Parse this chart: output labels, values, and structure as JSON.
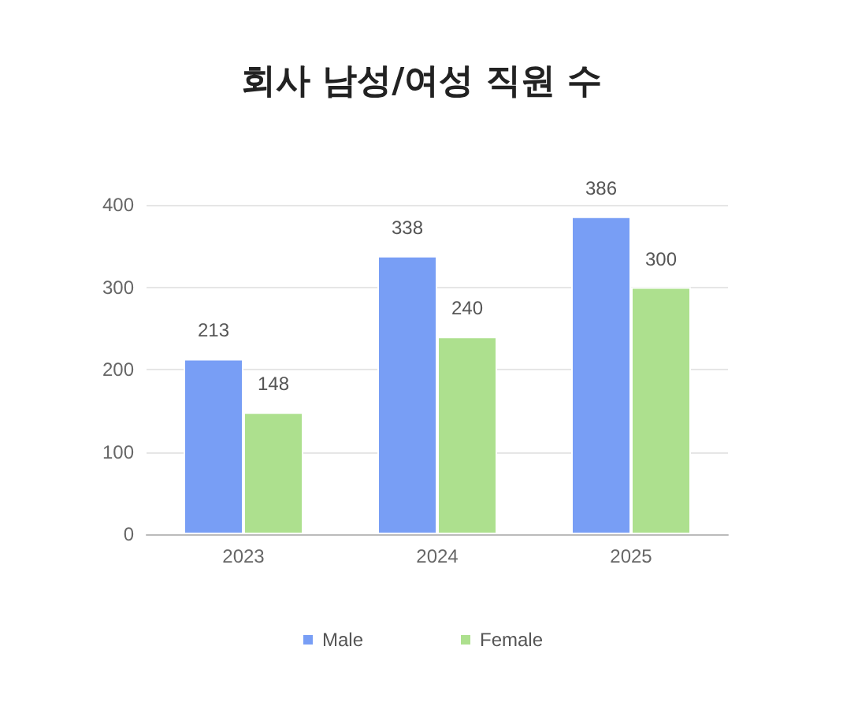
{
  "chart_data": {
    "type": "bar",
    "title": "회사 남성/여성 직원 수",
    "categories": [
      "2023",
      "2024",
      "2025"
    ],
    "series": [
      {
        "name": "Male",
        "color": "#789ef5",
        "values": [
          213,
          338,
          386
        ]
      },
      {
        "name": "Female",
        "color": "#ade08e",
        "values": [
          148,
          240,
          300
        ]
      }
    ],
    "ylim": [
      0,
      400
    ],
    "yticks": [
      0,
      100,
      200,
      300,
      400
    ],
    "grid": "y",
    "legend": "bottom",
    "data_labels": true
  }
}
